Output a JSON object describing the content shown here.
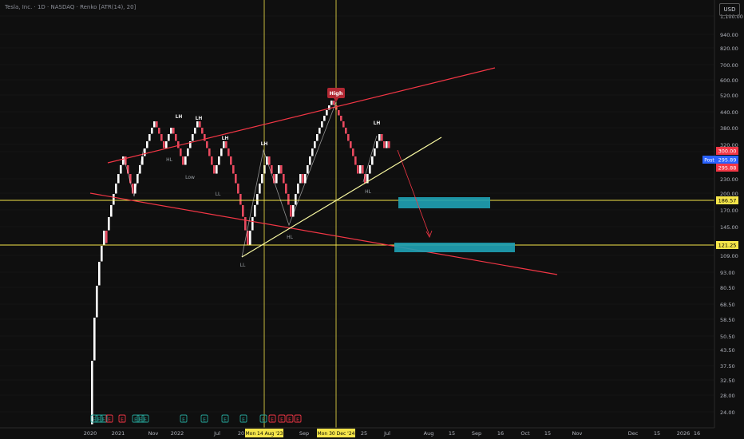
{
  "header": {
    "symbol_line": "Tesla, Inc. · 1D · NASDAQ · Renko [ATR(14), 20]",
    "currency_button": "USD"
  },
  "colors": {
    "background": "#0f0f0f",
    "up_brick": "#ffffff",
    "down_brick": "#e84a5f",
    "trendline_red": "#f23645",
    "trendline_yellow": "#f7f7a0",
    "horizontal_level": "#f5e54a",
    "zone": "#1fa2b5",
    "grid": "#1c1c1c"
  },
  "chart_data": {
    "type": "renko",
    "title": "Tesla, Inc. · 1D · NASDAQ · Renko [ATR(14), 20]",
    "y_scale": "log",
    "ylim": [
      21,
      1250
    ],
    "price_axis_ticks": [
      1100,
      940,
      820,
      700,
      600,
      520,
      440,
      380,
      320,
      300,
      230,
      200,
      170,
      145,
      109,
      93,
      80.5,
      68.5,
      58.5,
      50.5,
      43.5,
      37.5,
      32.5,
      28,
      24
    ],
    "time_axis_ticks": [
      "2020",
      "2021",
      "Nov",
      "2022",
      "Jul",
      "20",
      "Sep",
      "25",
      "Jul",
      "Aug",
      "15",
      "Sep",
      "16",
      "Oct",
      "15",
      "Nov",
      "Dec",
      "15",
      "2026",
      "16"
    ],
    "price_labels": [
      {
        "text": "300.00",
        "color": "#f23645"
      },
      {
        "text": "295.89",
        "color": "#2962ff"
      },
      {
        "text": "295.88",
        "color": "#f23645"
      },
      {
        "text": "186.57",
        "color": "#f5e54a"
      },
      {
        "text": "121.25",
        "color": "#f5e54a"
      }
    ],
    "post_label": "Post",
    "crosshair_date_labels": [
      "Mon 14 Aug '23",
      "Mon 30 Dec '24"
    ],
    "horizontal_levels": [
      186.57,
      121.25
    ],
    "annotations": [
      "High",
      "LH",
      "LH",
      "LH",
      "LH",
      "LH",
      "HL",
      "Low",
      "LL",
      "LL",
      "HL",
      "HL"
    ],
    "event_markers": [
      "E",
      "E",
      "E",
      "E",
      "E",
      "E",
      "E",
      "E",
      "E",
      "E",
      "E",
      "E",
      "E",
      "E",
      "E",
      "E",
      "E"
    ],
    "bricks": [
      {
        "x": 114,
        "y_top": 452,
        "y_bot": 532,
        "dir": "up"
      },
      {
        "x": 117,
        "y_top": 398,
        "y_bot": 452,
        "dir": "up"
      },
      {
        "x": 120,
        "y_top": 358,
        "y_bot": 398,
        "dir": "up"
      },
      {
        "x": 123,
        "y_top": 328,
        "y_bot": 358,
        "dir": "up"
      },
      {
        "x": 126,
        "y_top": 308,
        "y_bot": 328,
        "dir": "up"
      },
      {
        "x": 129,
        "y_top": 289,
        "y_bot": 308,
        "dir": "up"
      },
      {
        "x": 132,
        "y_top": 289,
        "y_bot": 305,
        "dir": "down"
      },
      {
        "x": 135,
        "y_top": 272,
        "y_bot": 289,
        "dir": "up"
      },
      {
        "x": 138,
        "y_top": 257,
        "y_bot": 272,
        "dir": "up"
      },
      {
        "x": 141,
        "y_top": 243,
        "y_bot": 257,
        "dir": "up"
      },
      {
        "x": 144,
        "y_top": 230,
        "y_bot": 243,
        "dir": "up"
      },
      {
        "x": 147,
        "y_top": 218,
        "y_bot": 230,
        "dir": "up"
      },
      {
        "x": 150,
        "y_top": 207,
        "y_bot": 218,
        "dir": "up"
      },
      {
        "x": 153,
        "y_top": 196,
        "y_bot": 207,
        "dir": "up"
      },
      {
        "x": 156,
        "y_top": 196,
        "y_bot": 207,
        "dir": "down"
      },
      {
        "x": 159,
        "y_top": 207,
        "y_bot": 218,
        "dir": "down"
      },
      {
        "x": 162,
        "y_top": 218,
        "y_bot": 230,
        "dir": "down"
      },
      {
        "x": 165,
        "y_top": 230,
        "y_bot": 243,
        "dir": "down"
      },
      {
        "x": 168,
        "y_top": 230,
        "y_bot": 243,
        "dir": "up"
      },
      {
        "x": 171,
        "y_top": 218,
        "y_bot": 230,
        "dir": "up"
      },
      {
        "x": 174,
        "y_top": 207,
        "y_bot": 218,
        "dir": "up"
      },
      {
        "x": 177,
        "y_top": 196,
        "y_bot": 207,
        "dir": "up"
      },
      {
        "x": 180,
        "y_top": 186,
        "y_bot": 196,
        "dir": "up"
      },
      {
        "x": 183,
        "y_top": 177,
        "y_bot": 186,
        "dir": "up"
      },
      {
        "x": 186,
        "y_top": 168,
        "y_bot": 177,
        "dir": "up"
      },
      {
        "x": 189,
        "y_top": 160,
        "y_bot": 168,
        "dir": "up"
      },
      {
        "x": 192,
        "y_top": 152,
        "y_bot": 160,
        "dir": "up"
      },
      {
        "x": 195,
        "y_top": 152,
        "y_bot": 160,
        "dir": "down"
      },
      {
        "x": 198,
        "y_top": 160,
        "y_bot": 168,
        "dir": "down"
      },
      {
        "x": 201,
        "y_top": 168,
        "y_bot": 177,
        "dir": "down"
      },
      {
        "x": 204,
        "y_top": 177,
        "y_bot": 186,
        "dir": "down"
      },
      {
        "x": 207,
        "y_top": 177,
        "y_bot": 186,
        "dir": "up"
      },
      {
        "x": 210,
        "y_top": 168,
        "y_bot": 177,
        "dir": "up"
      },
      {
        "x": 213,
        "y_top": 160,
        "y_bot": 168,
        "dir": "up"
      },
      {
        "x": 216,
        "y_top": 160,
        "y_bot": 168,
        "dir": "down"
      },
      {
        "x": 219,
        "y_top": 168,
        "y_bot": 177,
        "dir": "down"
      },
      {
        "x": 222,
        "y_top": 177,
        "y_bot": 186,
        "dir": "down"
      },
      {
        "x": 225,
        "y_top": 186,
        "y_bot": 196,
        "dir": "down"
      },
      {
        "x": 228,
        "y_top": 196,
        "y_bot": 207,
        "dir": "down"
      },
      {
        "x": 231,
        "y_top": 196,
        "y_bot": 207,
        "dir": "up"
      },
      {
        "x": 234,
        "y_top": 186,
        "y_bot": 196,
        "dir": "up"
      },
      {
        "x": 237,
        "y_top": 177,
        "y_bot": 186,
        "dir": "up"
      },
      {
        "x": 240,
        "y_top": 168,
        "y_bot": 177,
        "dir": "up"
      },
      {
        "x": 243,
        "y_top": 160,
        "y_bot": 168,
        "dir": "up"
      },
      {
        "x": 246,
        "y_top": 152,
        "y_bot": 160,
        "dir": "up"
      },
      {
        "x": 249,
        "y_top": 152,
        "y_bot": 160,
        "dir": "down"
      },
      {
        "x": 252,
        "y_top": 160,
        "y_bot": 168,
        "dir": "down"
      },
      {
        "x": 255,
        "y_top": 168,
        "y_bot": 177,
        "dir": "down"
      },
      {
        "x": 258,
        "y_top": 177,
        "y_bot": 186,
        "dir": "down"
      },
      {
        "x": 261,
        "y_top": 186,
        "y_bot": 196,
        "dir": "down"
      },
      {
        "x": 264,
        "y_top": 196,
        "y_bot": 207,
        "dir": "down"
      },
      {
        "x": 267,
        "y_top": 207,
        "y_bot": 218,
        "dir": "down"
      },
      {
        "x": 270,
        "y_top": 207,
        "y_bot": 218,
        "dir": "up"
      },
      {
        "x": 273,
        "y_top": 196,
        "y_bot": 207,
        "dir": "up"
      },
      {
        "x": 276,
        "y_top": 186,
        "y_bot": 196,
        "dir": "up"
      },
      {
        "x": 279,
        "y_top": 177,
        "y_bot": 186,
        "dir": "up"
      },
      {
        "x": 282,
        "y_top": 177,
        "y_bot": 186,
        "dir": "down"
      },
      {
        "x": 285,
        "y_top": 186,
        "y_bot": 196,
        "dir": "down"
      },
      {
        "x": 288,
        "y_top": 196,
        "y_bot": 207,
        "dir": "down"
      },
      {
        "x": 291,
        "y_top": 207,
        "y_bot": 218,
        "dir": "down"
      },
      {
        "x": 294,
        "y_top": 218,
        "y_bot": 230,
        "dir": "down"
      },
      {
        "x": 297,
        "y_top": 230,
        "y_bot": 243,
        "dir": "down"
      },
      {
        "x": 300,
        "y_top": 243,
        "y_bot": 257,
        "dir": "down"
      },
      {
        "x": 303,
        "y_top": 257,
        "y_bot": 272,
        "dir": "down"
      },
      {
        "x": 306,
        "y_top": 272,
        "y_bot": 289,
        "dir": "down"
      },
      {
        "x": 309,
        "y_top": 289,
        "y_bot": 308,
        "dir": "down"
      },
      {
        "x": 312,
        "y_top": 289,
        "y_bot": 308,
        "dir": "up"
      },
      {
        "x": 315,
        "y_top": 272,
        "y_bot": 289,
        "dir": "up"
      },
      {
        "x": 318,
        "y_top": 257,
        "y_bot": 272,
        "dir": "up"
      },
      {
        "x": 321,
        "y_top": 243,
        "y_bot": 257,
        "dir": "up"
      },
      {
        "x": 324,
        "y_top": 230,
        "y_bot": 243,
        "dir": "up"
      },
      {
        "x": 327,
        "y_top": 218,
        "y_bot": 230,
        "dir": "up"
      },
      {
        "x": 330,
        "y_top": 207,
        "y_bot": 218,
        "dir": "up"
      },
      {
        "x": 333,
        "y_top": 196,
        "y_bot": 207,
        "dir": "up"
      },
      {
        "x": 336,
        "y_top": 196,
        "y_bot": 207,
        "dir": "down"
      },
      {
        "x": 339,
        "y_top": 207,
        "y_bot": 218,
        "dir": "down"
      },
      {
        "x": 342,
        "y_top": 218,
        "y_bot": 230,
        "dir": "down"
      },
      {
        "x": 345,
        "y_top": 218,
        "y_bot": 230,
        "dir": "up"
      },
      {
        "x": 348,
        "y_top": 207,
        "y_bot": 218,
        "dir": "up"
      },
      {
        "x": 351,
        "y_top": 207,
        "y_bot": 218,
        "dir": "down"
      },
      {
        "x": 354,
        "y_top": 218,
        "y_bot": 230,
        "dir": "down"
      },
      {
        "x": 357,
        "y_top": 230,
        "y_bot": 243,
        "dir": "down"
      },
      {
        "x": 360,
        "y_top": 243,
        "y_bot": 257,
        "dir": "down"
      },
      {
        "x": 363,
        "y_top": 257,
        "y_bot": 272,
        "dir": "down"
      },
      {
        "x": 366,
        "y_top": 257,
        "y_bot": 272,
        "dir": "up"
      },
      {
        "x": 369,
        "y_top": 243,
        "y_bot": 257,
        "dir": "up"
      },
      {
        "x": 372,
        "y_top": 230,
        "y_bot": 243,
        "dir": "up"
      },
      {
        "x": 375,
        "y_top": 218,
        "y_bot": 230,
        "dir": "up"
      },
      {
        "x": 378,
        "y_top": 218,
        "y_bot": 230,
        "dir": "down"
      },
      {
        "x": 381,
        "y_top": 218,
        "y_bot": 230,
        "dir": "up"
      },
      {
        "x": 384,
        "y_top": 207,
        "y_bot": 218,
        "dir": "up"
      },
      {
        "x": 387,
        "y_top": 196,
        "y_bot": 207,
        "dir": "up"
      },
      {
        "x": 390,
        "y_top": 186,
        "y_bot": 196,
        "dir": "up"
      },
      {
        "x": 393,
        "y_top": 177,
        "y_bot": 186,
        "dir": "up"
      },
      {
        "x": 396,
        "y_top": 168,
        "y_bot": 177,
        "dir": "up"
      },
      {
        "x": 399,
        "y_top": 160,
        "y_bot": 168,
        "dir": "up"
      },
      {
        "x": 402,
        "y_top": 152,
        "y_bot": 160,
        "dir": "up"
      },
      {
        "x": 405,
        "y_top": 145,
        "y_bot": 152,
        "dir": "up"
      },
      {
        "x": 408,
        "y_top": 138,
        "y_bot": 145,
        "dir": "up"
      },
      {
        "x": 411,
        "y_top": 132,
        "y_bot": 138,
        "dir": "up"
      },
      {
        "x": 414,
        "y_top": 126,
        "y_bot": 132,
        "dir": "up"
      },
      {
        "x": 417,
        "y_top": 126,
        "y_bot": 132,
        "dir": "down"
      },
      {
        "x": 420,
        "y_top": 132,
        "y_bot": 138,
        "dir": "down"
      },
      {
        "x": 423,
        "y_top": 138,
        "y_bot": 145,
        "dir": "down"
      },
      {
        "x": 426,
        "y_top": 145,
        "y_bot": 152,
        "dir": "down"
      },
      {
        "x": 429,
        "y_top": 152,
        "y_bot": 160,
        "dir": "down"
      },
      {
        "x": 432,
        "y_top": 160,
        "y_bot": 168,
        "dir": "down"
      },
      {
        "x": 435,
        "y_top": 168,
        "y_bot": 177,
        "dir": "down"
      },
      {
        "x": 438,
        "y_top": 177,
        "y_bot": 186,
        "dir": "down"
      },
      {
        "x": 441,
        "y_top": 186,
        "y_bot": 196,
        "dir": "down"
      },
      {
        "x": 444,
        "y_top": 196,
        "y_bot": 207,
        "dir": "down"
      },
      {
        "x": 447,
        "y_top": 207,
        "y_bot": 218,
        "dir": "down"
      },
      {
        "x": 450,
        "y_top": 207,
        "y_bot": 218,
        "dir": "up"
      },
      {
        "x": 453,
        "y_top": 207,
        "y_bot": 218,
        "dir": "down"
      },
      {
        "x": 456,
        "y_top": 218,
        "y_bot": 230,
        "dir": "down"
      },
      {
        "x": 459,
        "y_top": 218,
        "y_bot": 230,
        "dir": "up"
      },
      {
        "x": 462,
        "y_top": 207,
        "y_bot": 218,
        "dir": "up"
      },
      {
        "x": 465,
        "y_top": 196,
        "y_bot": 207,
        "dir": "up"
      },
      {
        "x": 468,
        "y_top": 186,
        "y_bot": 196,
        "dir": "up"
      },
      {
        "x": 471,
        "y_top": 177,
        "y_bot": 186,
        "dir": "up"
      },
      {
        "x": 474,
        "y_top": 168,
        "y_bot": 177,
        "dir": "up"
      },
      {
        "x": 477,
        "y_top": 168,
        "y_bot": 177,
        "dir": "down"
      },
      {
        "x": 480,
        "y_top": 177,
        "y_bot": 186,
        "dir": "down"
      },
      {
        "x": 483,
        "y_top": 177,
        "y_bot": 186,
        "dir": "up"
      },
      {
        "x": 486,
        "y_top": 177,
        "y_bot": 186,
        "dir": "down"
      }
    ]
  }
}
